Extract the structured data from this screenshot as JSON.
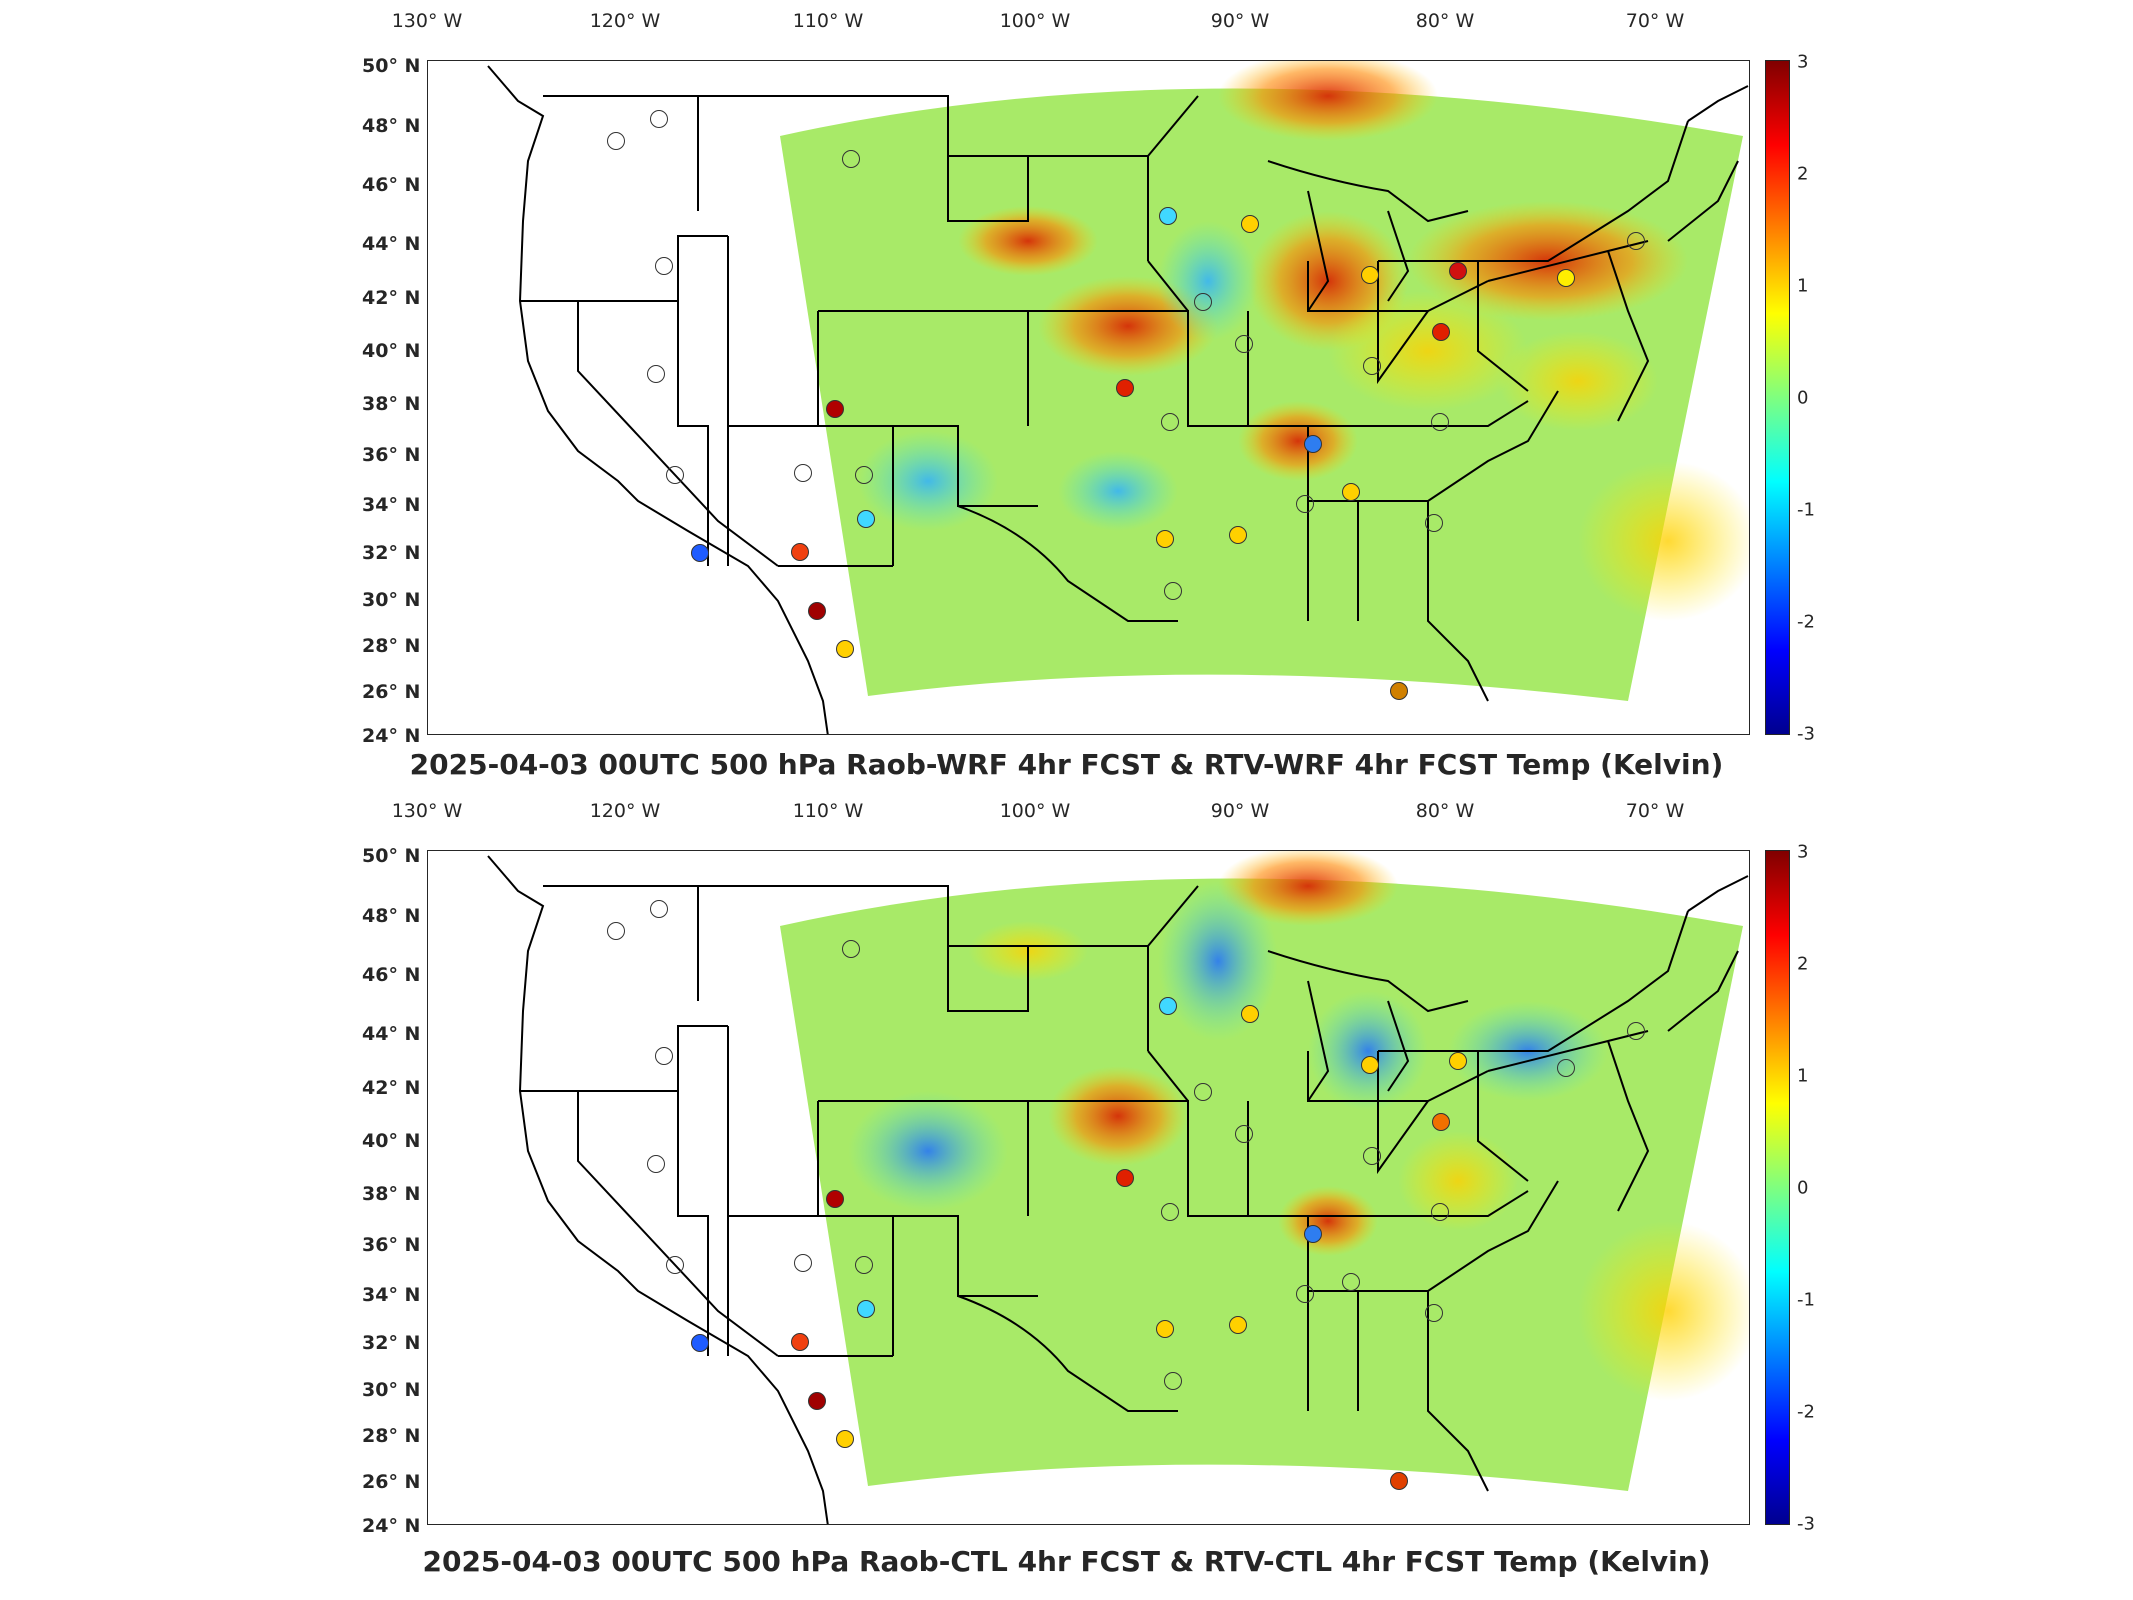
{
  "top": {
    "title": "2025-04-03 00UTC 500 hPa Raob-WRF 4hr FCST & RTV-WRF 4hr FCST Temp (Kelvin)"
  },
  "bottom": {
    "title": "2025-04-03 00UTC 500 hPa Raob-CTL 4hr FCST & RTV-CTL 4hr FCST Temp (Kelvin)"
  },
  "lon_labels": [
    "130° W",
    "120° W",
    "110° W",
    "100° W",
    "90° W",
    "80° W",
    "70° W"
  ],
  "lat_labels": [
    "50° N",
    "48° N",
    "46° N",
    "44° N",
    "42° N",
    "40° N",
    "38° N",
    "36° N",
    "34° N",
    "32° N",
    "30° N",
    "28° N",
    "26° N",
    "24° N"
  ],
  "colorbar": {
    "ticks": [
      "3",
      "2",
      "1",
      "0",
      "-1",
      "-2",
      "-3"
    ],
    "range": [
      -3,
      3
    ],
    "colormap": "jet"
  },
  "colors": {
    "background_field": "#9fe86a",
    "land_outline": "#000000"
  }
}
